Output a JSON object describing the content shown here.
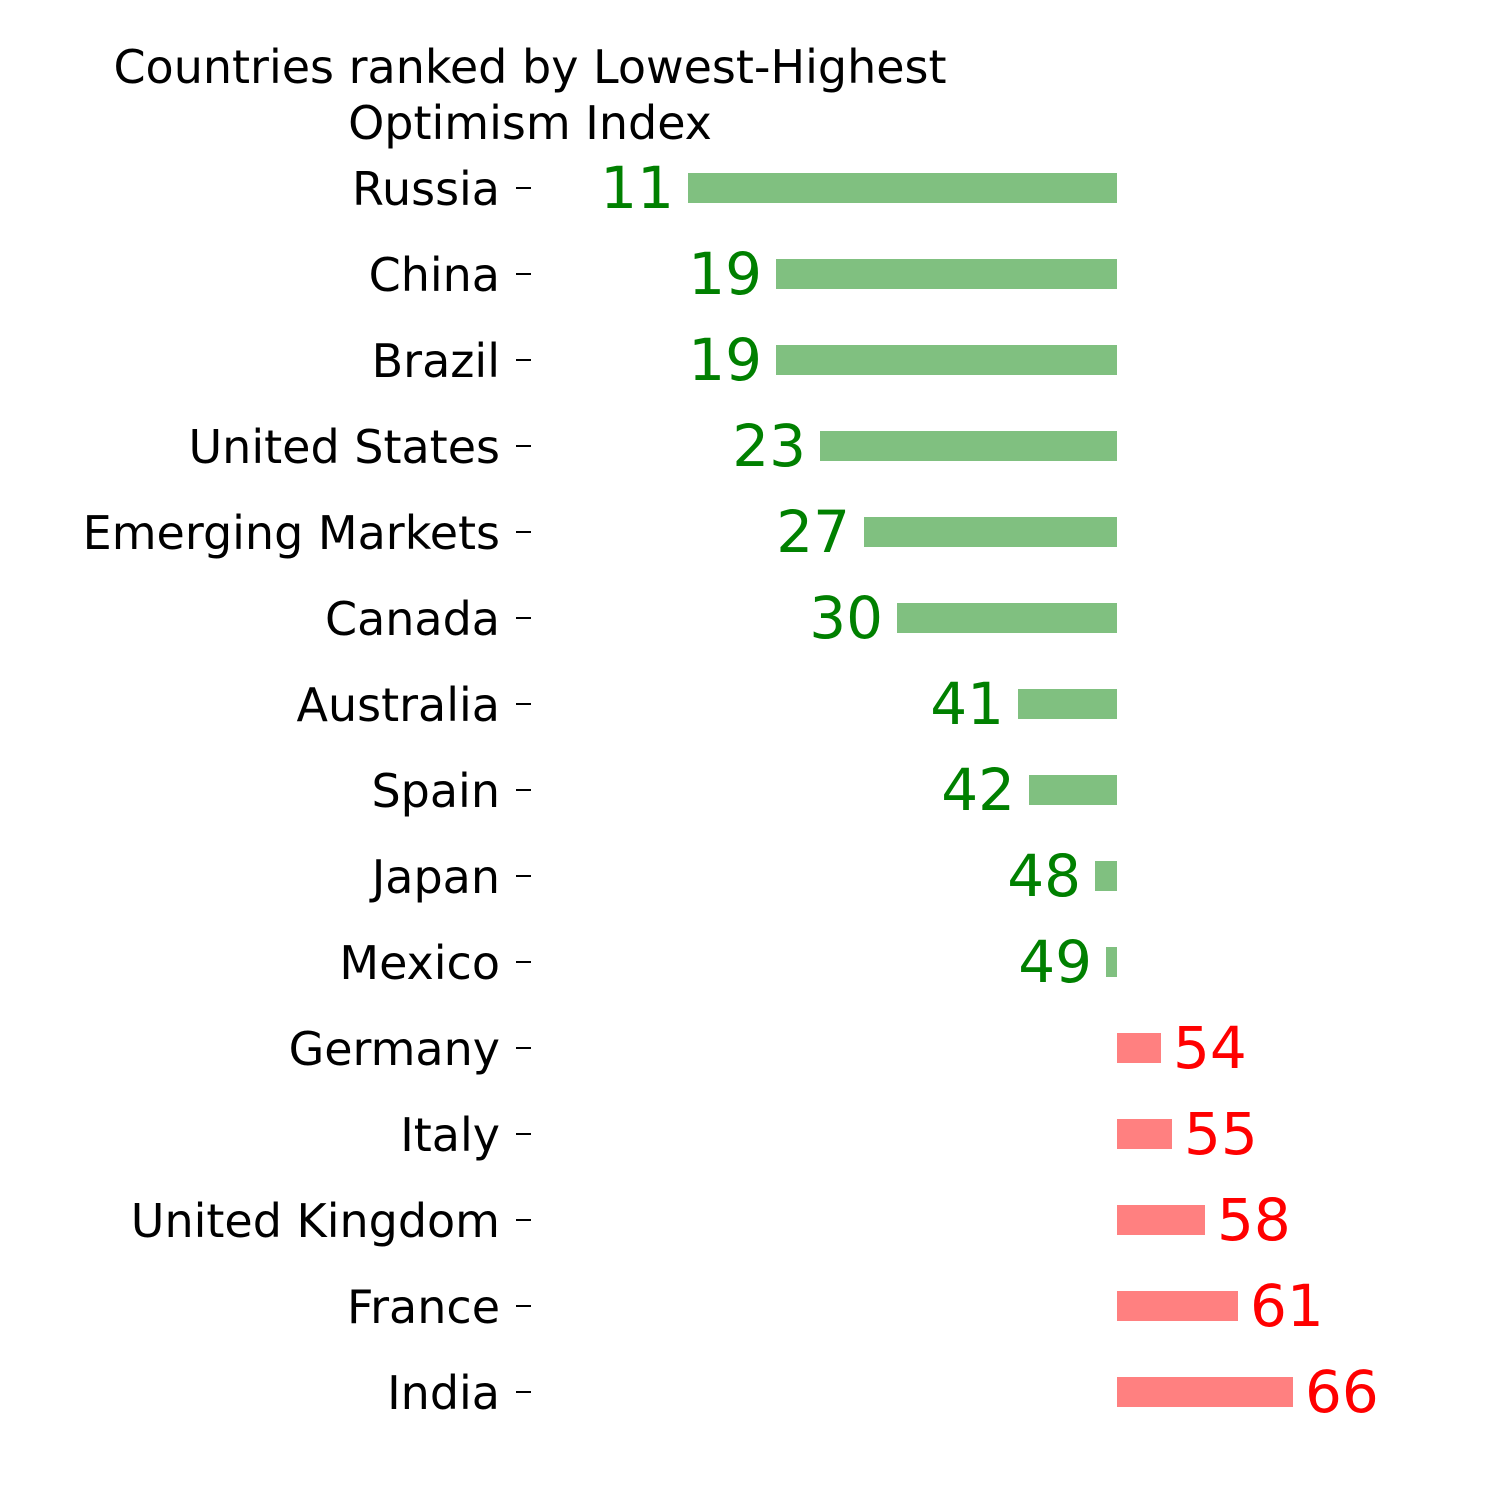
{
  "chart_data": {
    "type": "bar",
    "orientation": "horizontal",
    "title": "Countries ranked by Lowest-Highest\nOptimism Index",
    "categories": [
      "Russia",
      "China",
      "Brazil",
      "United States",
      "Emerging Markets",
      "Canada",
      "Australia",
      "Spain",
      "Japan",
      "Mexico",
      "Germany",
      "Italy",
      "United Kingdom",
      "France",
      "India"
    ],
    "values": [
      11,
      19,
      19,
      23,
      27,
      30,
      41,
      42,
      48,
      49,
      54,
      55,
      58,
      61,
      66
    ],
    "value_labels": [
      "11",
      "19",
      "19",
      "23",
      "27",
      "30",
      "41",
      "42",
      "48",
      "49",
      "54",
      "55",
      "58",
      "61",
      "66"
    ],
    "baseline": 50,
    "colors": {
      "below_bar": "#80c080",
      "below_text": "#008000",
      "above_bar": "#ff8080",
      "above_text": "#ff0000"
    },
    "grid": false,
    "legend": "none"
  }
}
